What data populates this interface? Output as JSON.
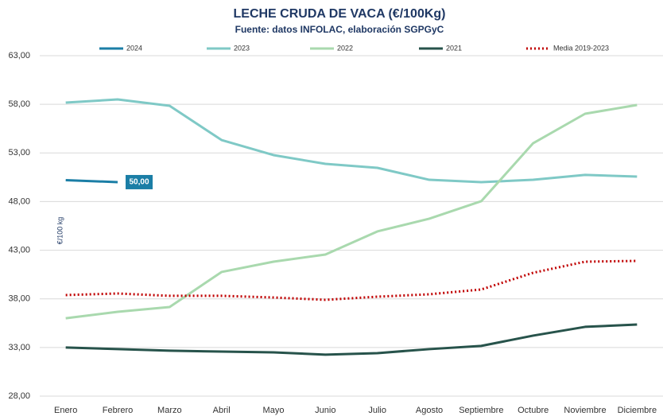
{
  "chart_data": {
    "type": "line",
    "title": "LECHE CRUDA DE VACA (€/100Kg)",
    "subtitle": "Fuente: datos INFOLAC, elaboración SGPGyC",
    "y_label": "€/100 kg",
    "categories": [
      "Enero",
      "Febrero",
      "Marzo",
      "Abril",
      "Mayo",
      "Junio",
      "Julio",
      "Agosto",
      "Septiembre",
      "Octubre",
      "Noviembre",
      "Diciembre"
    ],
    "series": [
      {
        "name": "2024",
        "color": "#1b7ea6",
        "style": "solid",
        "values": [
          50.2,
          50.0,
          null,
          null,
          null,
          null,
          null,
          null,
          null,
          null,
          null,
          null
        ],
        "value_labels": [
          null,
          "50,00",
          null,
          null,
          null,
          null,
          null,
          null,
          null,
          null,
          null,
          null
        ]
      },
      {
        "name": "2023",
        "color": "#7fc9c6",
        "style": "solid",
        "values": [
          58.18,
          58.5,
          57.85,
          54.33,
          52.78,
          51.88,
          51.47,
          50.24,
          50.0,
          50.24,
          50.74,
          50.57
        ]
      },
      {
        "name": "2022",
        "color": "#a9d9ae",
        "style": "solid",
        "values": [
          36.0,
          36.67,
          37.16,
          40.76,
          41.82,
          42.56,
          44.93,
          46.24,
          48.04,
          54.0,
          57.03,
          57.93
        ]
      },
      {
        "name": "2021",
        "color": "#27534b",
        "style": "solid",
        "values": [
          33.0,
          32.83,
          32.67,
          32.58,
          32.5,
          32.26,
          32.42,
          32.83,
          33.16,
          34.22,
          35.12,
          35.36
        ]
      },
      {
        "name": "Media 2019-2023",
        "color": "#c00000",
        "style": "dotted",
        "values": [
          38.39,
          38.55,
          38.31,
          38.31,
          38.14,
          37.9,
          38.22,
          38.47,
          38.96,
          40.68,
          41.82,
          41.9
        ]
      }
    ],
    "ylim": [
      28,
      63
    ],
    "yticks": [
      {
        "value": 28,
        "label": "28,00"
      },
      {
        "value": 33,
        "label": "33,00"
      },
      {
        "value": 38,
        "label": "38,00"
      },
      {
        "value": 43,
        "label": "43,00"
      },
      {
        "value": 48,
        "label": "48,00"
      },
      {
        "value": 53,
        "label": "53,00"
      },
      {
        "value": 58,
        "label": "58,00"
      },
      {
        "value": 63,
        "label": "63,00"
      }
    ],
    "grid": true,
    "legend": "top"
  }
}
